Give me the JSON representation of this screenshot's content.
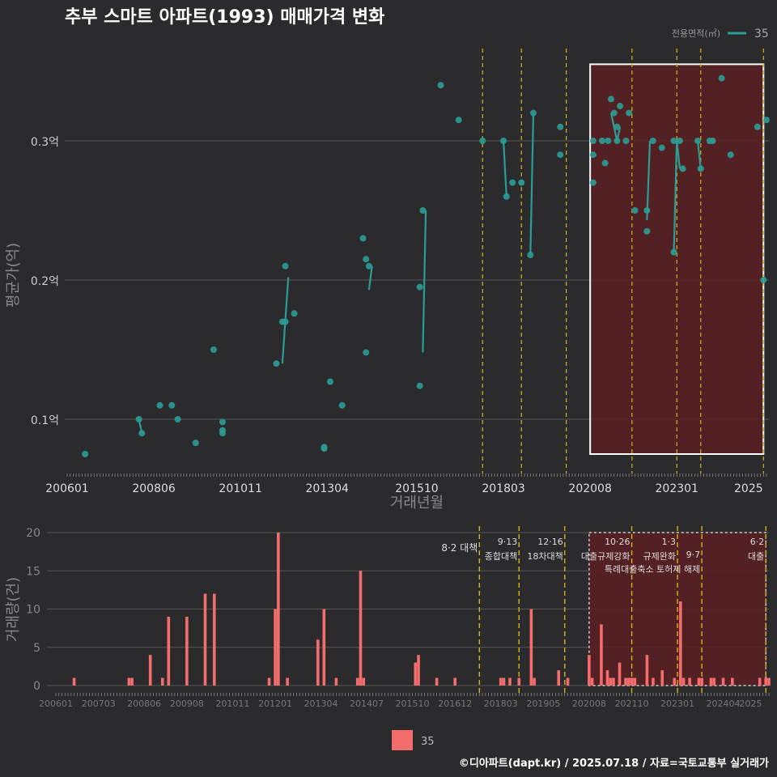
{
  "title": "추부 스마트 아파트(1993) 매매가격 변화",
  "footer": "©디아파트(dapt.kr) / 2025.07.18 / 자료=국토교통부 실거래가",
  "legend_top": {
    "title": "전용면적(㎡)",
    "item": "35"
  },
  "legend_bottom": {
    "item": "35"
  },
  "colors": {
    "background": "#2b2b2d",
    "line": "#2a9d96",
    "bar": "#f46d6d",
    "policy": "#d4b418",
    "highlight": "#5a1e22"
  },
  "price_panel": {
    "ylabel": "평균가(억)",
    "xlabel": "거래년월",
    "y_ticks": [
      "0.1억",
      "0.2억",
      "0.3억"
    ],
    "x_ticks": [
      "200601",
      "200806",
      "201011",
      "201304",
      "201510",
      "201803",
      "202008",
      "202301",
      "2025"
    ]
  },
  "volume_panel": {
    "ylabel": "거래량(건)",
    "y_ticks": [
      "0",
      "5",
      "10",
      "15",
      "20"
    ],
    "x_ticks": [
      "200601",
      "200703",
      "200806",
      "200908",
      "201011",
      "201201",
      "201304",
      "201407",
      "201510",
      "201612",
      "201803",
      "201905",
      "202008",
      "202110",
      "202301",
      "202404",
      "2025"
    ]
  },
  "policies": [
    {
      "date": "2017-08",
      "line1": "8·2 대책",
      "line2": ""
    },
    {
      "date": "2018-09",
      "line1": "9·13",
      "line2": "종합대책"
    },
    {
      "date": "2019-12",
      "line1": "12·16",
      "line2": "18차대책"
    },
    {
      "date": "2021-10",
      "line1": "10·26",
      "line2": "대출규제강화"
    },
    {
      "date": "2023-01",
      "line1": "1·3",
      "line2": "규제완화"
    },
    {
      "date": "2023-09",
      "line1": "9·7",
      "line2": "특례대출축소 토허제 해제"
    },
    {
      "date": "2025-06",
      "line1": "6·2",
      "line2": "대출"
    }
  ],
  "chart_data": [
    {
      "type": "scatter",
      "title": "추부 스마트 아파트(1993) 매매가격 변화",
      "xlabel": "거래년월",
      "ylabel": "평균가(억)",
      "ylim": [
        0.065,
        0.36
      ],
      "xlim": [
        "2006-01",
        "2025-07"
      ],
      "grid": true,
      "legend": "top-right",
      "series": [
        {
          "name": "35",
          "points": [
            [
              "2006-07",
              0.075
            ],
            [
              "2008-01",
              0.1
            ],
            [
              "2008-02",
              0.09
            ],
            [
              "2008-08",
              0.11
            ],
            [
              "2008-12",
              0.11
            ],
            [
              "2009-02",
              0.1
            ],
            [
              "2009-08",
              0.083
            ],
            [
              "2010-02",
              0.15
            ],
            [
              "2010-05",
              0.098
            ],
            [
              "2010-05",
              0.092
            ],
            [
              "2010-05",
              0.09
            ],
            [
              "2011-11",
              0.14
            ],
            [
              "2012-01",
              0.17
            ],
            [
              "2012-02",
              0.21
            ],
            [
              "2012-02",
              0.17
            ],
            [
              "2012-05",
              0.176
            ],
            [
              "2013-03",
              0.08
            ],
            [
              "2013-03",
              0.079
            ],
            [
              "2013-05",
              0.127
            ],
            [
              "2013-09",
              0.11
            ],
            [
              "2014-04",
              0.23
            ],
            [
              "2014-05",
              0.215
            ],
            [
              "2014-06",
              0.21
            ],
            [
              "2014-05",
              0.148
            ],
            [
              "2015-11",
              0.124
            ],
            [
              "2015-11",
              0.195
            ],
            [
              "2015-12",
              0.25
            ],
            [
              "2016-06",
              0.34
            ],
            [
              "2016-12",
              0.315
            ],
            [
              "2017-08",
              0.3
            ],
            [
              "2018-03",
              0.3
            ],
            [
              "2018-04",
              0.26
            ],
            [
              "2018-06",
              0.27
            ],
            [
              "2018-09",
              0.27
            ],
            [
              "2018-12",
              0.218
            ],
            [
              "2019-01",
              0.32
            ],
            [
              "2019-10",
              0.31
            ],
            [
              "2019-10",
              0.29
            ],
            [
              "2020-09",
              0.3
            ],
            [
              "2020-09",
              0.29
            ],
            [
              "2020-09",
              0.27
            ],
            [
              "2020-12",
              0.3
            ],
            [
              "2021-01",
              0.284
            ],
            [
              "2021-02",
              0.3
            ],
            [
              "2021-03",
              0.33
            ],
            [
              "2021-04",
              0.32
            ],
            [
              "2021-05",
              0.3
            ],
            [
              "2021-05",
              0.31
            ],
            [
              "2021-06",
              0.325
            ],
            [
              "2021-08",
              0.3
            ],
            [
              "2021-09",
              0.32
            ],
            [
              "2021-11",
              0.25
            ],
            [
              "2022-03",
              0.25
            ],
            [
              "2022-03",
              0.235
            ],
            [
              "2022-05",
              0.3
            ],
            [
              "2022-08",
              0.295
            ],
            [
              "2022-12",
              0.3
            ],
            [
              "2022-12",
              0.22
            ],
            [
              "2023-02",
              0.3
            ],
            [
              "2023-03",
              0.28
            ],
            [
              "2023-08",
              0.3
            ],
            [
              "2023-09",
              0.28
            ],
            [
              "2023-12",
              0.3
            ],
            [
              "2024-01",
              0.3
            ],
            [
              "2024-04",
              0.345
            ],
            [
              "2024-07",
              0.29
            ],
            [
              "2025-04",
              0.31
            ],
            [
              "2025-06",
              0.2
            ],
            [
              "2025-07",
              0.315
            ]
          ],
          "lines": [
            [
              [
                "2008-01",
                0.1
              ],
              [
                "2008-02",
                0.09
              ]
            ],
            [
              [
                "2012-01",
                0.14
              ],
              [
                "2012-03",
                0.202
              ]
            ],
            [
              [
                "2014-06",
                0.193
              ],
              [
                "2014-07",
                0.21
              ]
            ],
            [
              [
                "2015-12",
                0.148
              ],
              [
                "2016-01",
                0.25
              ]
            ],
            [
              [
                "2018-03",
                0.3
              ],
              [
                "2018-04",
                0.26
              ]
            ],
            [
              [
                "2018-12",
                0.218
              ],
              [
                "2019-01",
                0.32
              ]
            ],
            [
              [
                "2021-03",
                0.32
              ],
              [
                "2021-05",
                0.3
              ]
            ],
            [
              [
                "2021-05",
                0.3
              ],
              [
                "2021-06",
                0.31
              ]
            ],
            [
              [
                "2022-03",
                0.243
              ],
              [
                "2022-04",
                0.3
              ]
            ],
            [
              [
                "2022-12",
                0.22
              ],
              [
                "2023-01",
                0.3
              ]
            ],
            [
              [
                "2023-01",
                0.3
              ],
              [
                "2023-02",
                0.28
              ]
            ],
            [
              [
                "2023-08",
                0.3
              ],
              [
                "2023-09",
                0.28
              ]
            ]
          ]
        }
      ],
      "highlight": {
        "x": [
          "2020-08",
          "2025-06"
        ],
        "y": [
          0.075,
          0.355
        ]
      }
    },
    {
      "type": "bar",
      "xlabel": "",
      "ylabel": "거래량(건)",
      "ylim": [
        0,
        20
      ],
      "grid": true,
      "legend": "bottom",
      "series": [
        {
          "name": "35",
          "points": [
            [
              "2006-07",
              1
            ],
            [
              "2008-01",
              1
            ],
            [
              "2008-02",
              1
            ],
            [
              "2008-08",
              4
            ],
            [
              "2008-12",
              1
            ],
            [
              "2009-02",
              9
            ],
            [
              "2009-08",
              9
            ],
            [
              "2010-02",
              12
            ],
            [
              "2010-05",
              12
            ],
            [
              "2011-11",
              1
            ],
            [
              "2012-01",
              10
            ],
            [
              "2012-02",
              20
            ],
            [
              "2012-05",
              1
            ],
            [
              "2013-03",
              6
            ],
            [
              "2013-05",
              10
            ],
            [
              "2013-09",
              1
            ],
            [
              "2014-04",
              1
            ],
            [
              "2014-05",
              15
            ],
            [
              "2014-06",
              1
            ],
            [
              "2015-11",
              3
            ],
            [
              "2015-12",
              4
            ],
            [
              "2016-06",
              1
            ],
            [
              "2016-12",
              1
            ],
            [
              "2018-03",
              1
            ],
            [
              "2018-04",
              1
            ],
            [
              "2018-06",
              1
            ],
            [
              "2018-09",
              1
            ],
            [
              "2019-01",
              10
            ],
            [
              "2019-02",
              1
            ],
            [
              "2019-10",
              2
            ],
            [
              "2020-01",
              1
            ],
            [
              "2020-08",
              4
            ],
            [
              "2020-09",
              1
            ],
            [
              "2020-12",
              8
            ],
            [
              "2021-02",
              2
            ],
            [
              "2021-03",
              1
            ],
            [
              "2021-04",
              1
            ],
            [
              "2021-06",
              3
            ],
            [
              "2021-08",
              1
            ],
            [
              "2021-09",
              1
            ],
            [
              "2021-10",
              1
            ],
            [
              "2021-11",
              1
            ],
            [
              "2022-03",
              4
            ],
            [
              "2022-05",
              1
            ],
            [
              "2022-08",
              2
            ],
            [
              "2022-12",
              1
            ],
            [
              "2023-02",
              11
            ],
            [
              "2023-03",
              1
            ],
            [
              "2023-05",
              1
            ],
            [
              "2023-08",
              1
            ],
            [
              "2023-09",
              1
            ],
            [
              "2023-12",
              1
            ],
            [
              "2024-01",
              1
            ],
            [
              "2024-04",
              1
            ],
            [
              "2024-07",
              1
            ],
            [
              "2025-04",
              1
            ],
            [
              "2025-06",
              1
            ],
            [
              "2025-07",
              1
            ]
          ]
        }
      ],
      "highlight": {
        "x": [
          "2020-08",
          "2025-06"
        ],
        "y": [
          0,
          20
        ]
      }
    }
  ]
}
